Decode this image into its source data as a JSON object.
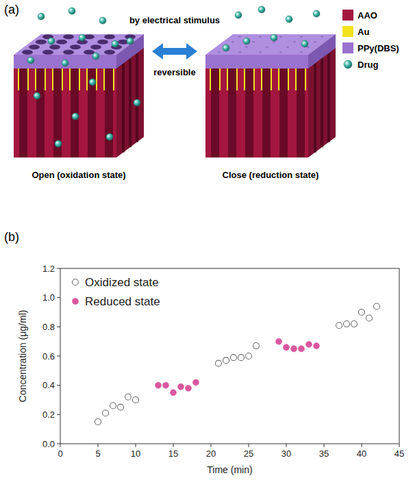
{
  "diagram": {
    "label": "(a)",
    "top_text": "by electrical stimulus",
    "arrow_text": "reversible",
    "states": [
      "Open (oxidation state)",
      "Close (reduction state)"
    ],
    "legend": [
      {
        "label": "AAO",
        "color": "#a3163f"
      },
      {
        "label": "Au",
        "color": "#f2e21c"
      },
      {
        "label": "PPy(DBS)",
        "color": "#9a72cf"
      },
      {
        "label": "Drug",
        "color": "#3bb3a4"
      }
    ]
  },
  "chart_data": {
    "label": "(b)",
    "type": "scatter",
    "x_label": "Time (min)",
    "y_label": "Concentration (μg/ml)",
    "xlim": [
      0,
      45
    ],
    "xticks": [
      0,
      5,
      10,
      15,
      20,
      25,
      30,
      35,
      40,
      45
    ],
    "ylim": [
      0,
      1.2
    ],
    "yticks": [
      {
        "value": 0,
        "label": "0.0"
      },
      0.2,
      0.4,
      0.6,
      0.8,
      {
        "value": 1,
        "label": "1.0"
      },
      1.2
    ],
    "grid": false,
    "legend": "upper left",
    "series": [
      {
        "name": "Oxidized state",
        "color": "#6b6b6b",
        "marker": "open circle",
        "x": [
          5,
          6,
          7,
          8,
          9,
          10,
          21,
          22,
          23,
          24,
          25,
          26,
          37,
          38,
          39,
          40,
          41,
          42
        ],
        "values": [
          0.15,
          0.21,
          0.26,
          0.25,
          0.32,
          0.3,
          0.55,
          0.57,
          0.59,
          0.59,
          0.6,
          0.67,
          0.81,
          0.82,
          0.82,
          0.9,
          0.86,
          0.94
        ]
      },
      {
        "name": "Reduced state",
        "color": "#d9579f",
        "marker": "circle",
        "x": [
          13,
          14,
          15,
          16,
          17,
          18,
          29,
          30,
          31,
          32,
          33,
          34
        ],
        "values": [
          0.4,
          0.4,
          0.35,
          0.39,
          0.38,
          0.42,
          0.7,
          0.66,
          0.65,
          0.65,
          0.68,
          0.67
        ]
      }
    ]
  }
}
